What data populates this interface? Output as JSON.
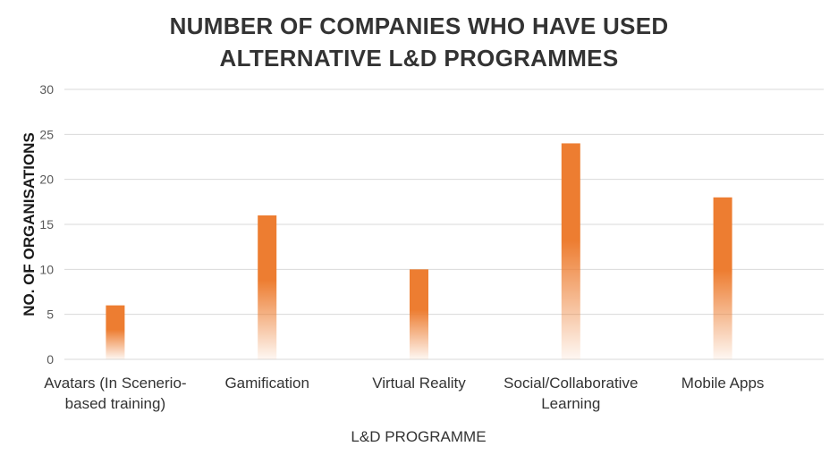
{
  "chart_data": {
    "type": "bar",
    "title_lines": [
      "NUMBER OF COMPANIES WHO HAVE USED",
      "ALTERNATIVE L&D PROGRAMMES"
    ],
    "xlabel": "L&D PROGRAMME",
    "ylabel": "NO. OF ORGANISATIONS",
    "categories": [
      [
        "Avatars (In Scenerio-",
        "based training)"
      ],
      [
        "Gamification"
      ],
      [
        "Virtual Reality"
      ],
      [
        "Social/Collaborative",
        "Learning"
      ],
      [
        "Mobile Apps"
      ]
    ],
    "values": [
      6,
      16,
      10,
      24,
      18
    ],
    "ylim": [
      0,
      30
    ],
    "yticks": [
      0,
      5,
      10,
      15,
      20,
      25,
      30
    ],
    "grid": true,
    "legend": "none",
    "bar_color": "#ED7D31",
    "gridline_color": "#D9D9D9",
    "text_color": "#333333"
  }
}
